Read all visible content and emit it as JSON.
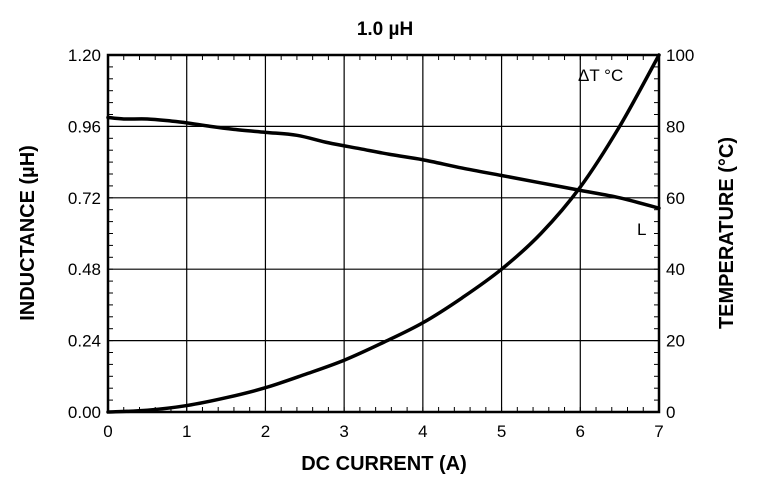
{
  "chart_data": {
    "type": "line",
    "title": "1.0 µH",
    "xlabel": "DC CURRENT (A)",
    "ylabel_left": "INDUCTANCE (µH)",
    "ylabel_right": "TEMPERATURE (°C)",
    "xlim": [
      0,
      7
    ],
    "ylim_left": [
      0,
      1.2
    ],
    "ylim_right": [
      0,
      100
    ],
    "x_ticks": [
      "0",
      "1",
      "2",
      "3",
      "4",
      "5",
      "6",
      "7"
    ],
    "y_left_ticks": [
      "0.00",
      "0.24",
      "0.48",
      "0.72",
      "0.96",
      "1.20"
    ],
    "y_right_ticks": [
      "0",
      "20",
      "40",
      "60",
      "80",
      "100"
    ],
    "grid": true,
    "series": [
      {
        "name": "L",
        "axis": "left",
        "x": [
          0,
          0.2,
          0.5,
          0.8,
          1.0,
          1.3,
          1.6,
          2.0,
          2.4,
          2.8,
          3.2,
          3.6,
          4.0,
          4.5,
          5.0,
          5.5,
          6.0,
          6.5,
          7.0
        ],
        "y": [
          0.99,
          0.985,
          0.985,
          0.978,
          0.972,
          0.96,
          0.95,
          0.94,
          0.93,
          0.905,
          0.885,
          0.865,
          0.848,
          0.82,
          0.795,
          0.77,
          0.745,
          0.72,
          0.685
        ]
      },
      {
        "name": "ΔT °C",
        "axis": "right",
        "x": [
          0,
          0.5,
          1.0,
          1.5,
          2.0,
          2.5,
          3.0,
          3.5,
          4.0,
          4.5,
          5.0,
          5.5,
          6.0,
          6.5,
          7.0
        ],
        "y": [
          0,
          0.5,
          1.8,
          4,
          6.8,
          10.5,
          14.5,
          19.5,
          25,
          32,
          40,
          50,
          63,
          80,
          100
        ]
      }
    ],
    "annotations": [
      {
        "text": "ΔT °C",
        "series": "ΔT °C"
      },
      {
        "text": "L",
        "series": "L"
      }
    ],
    "colors": {
      "line": "#000000",
      "grid": "#000000"
    }
  }
}
